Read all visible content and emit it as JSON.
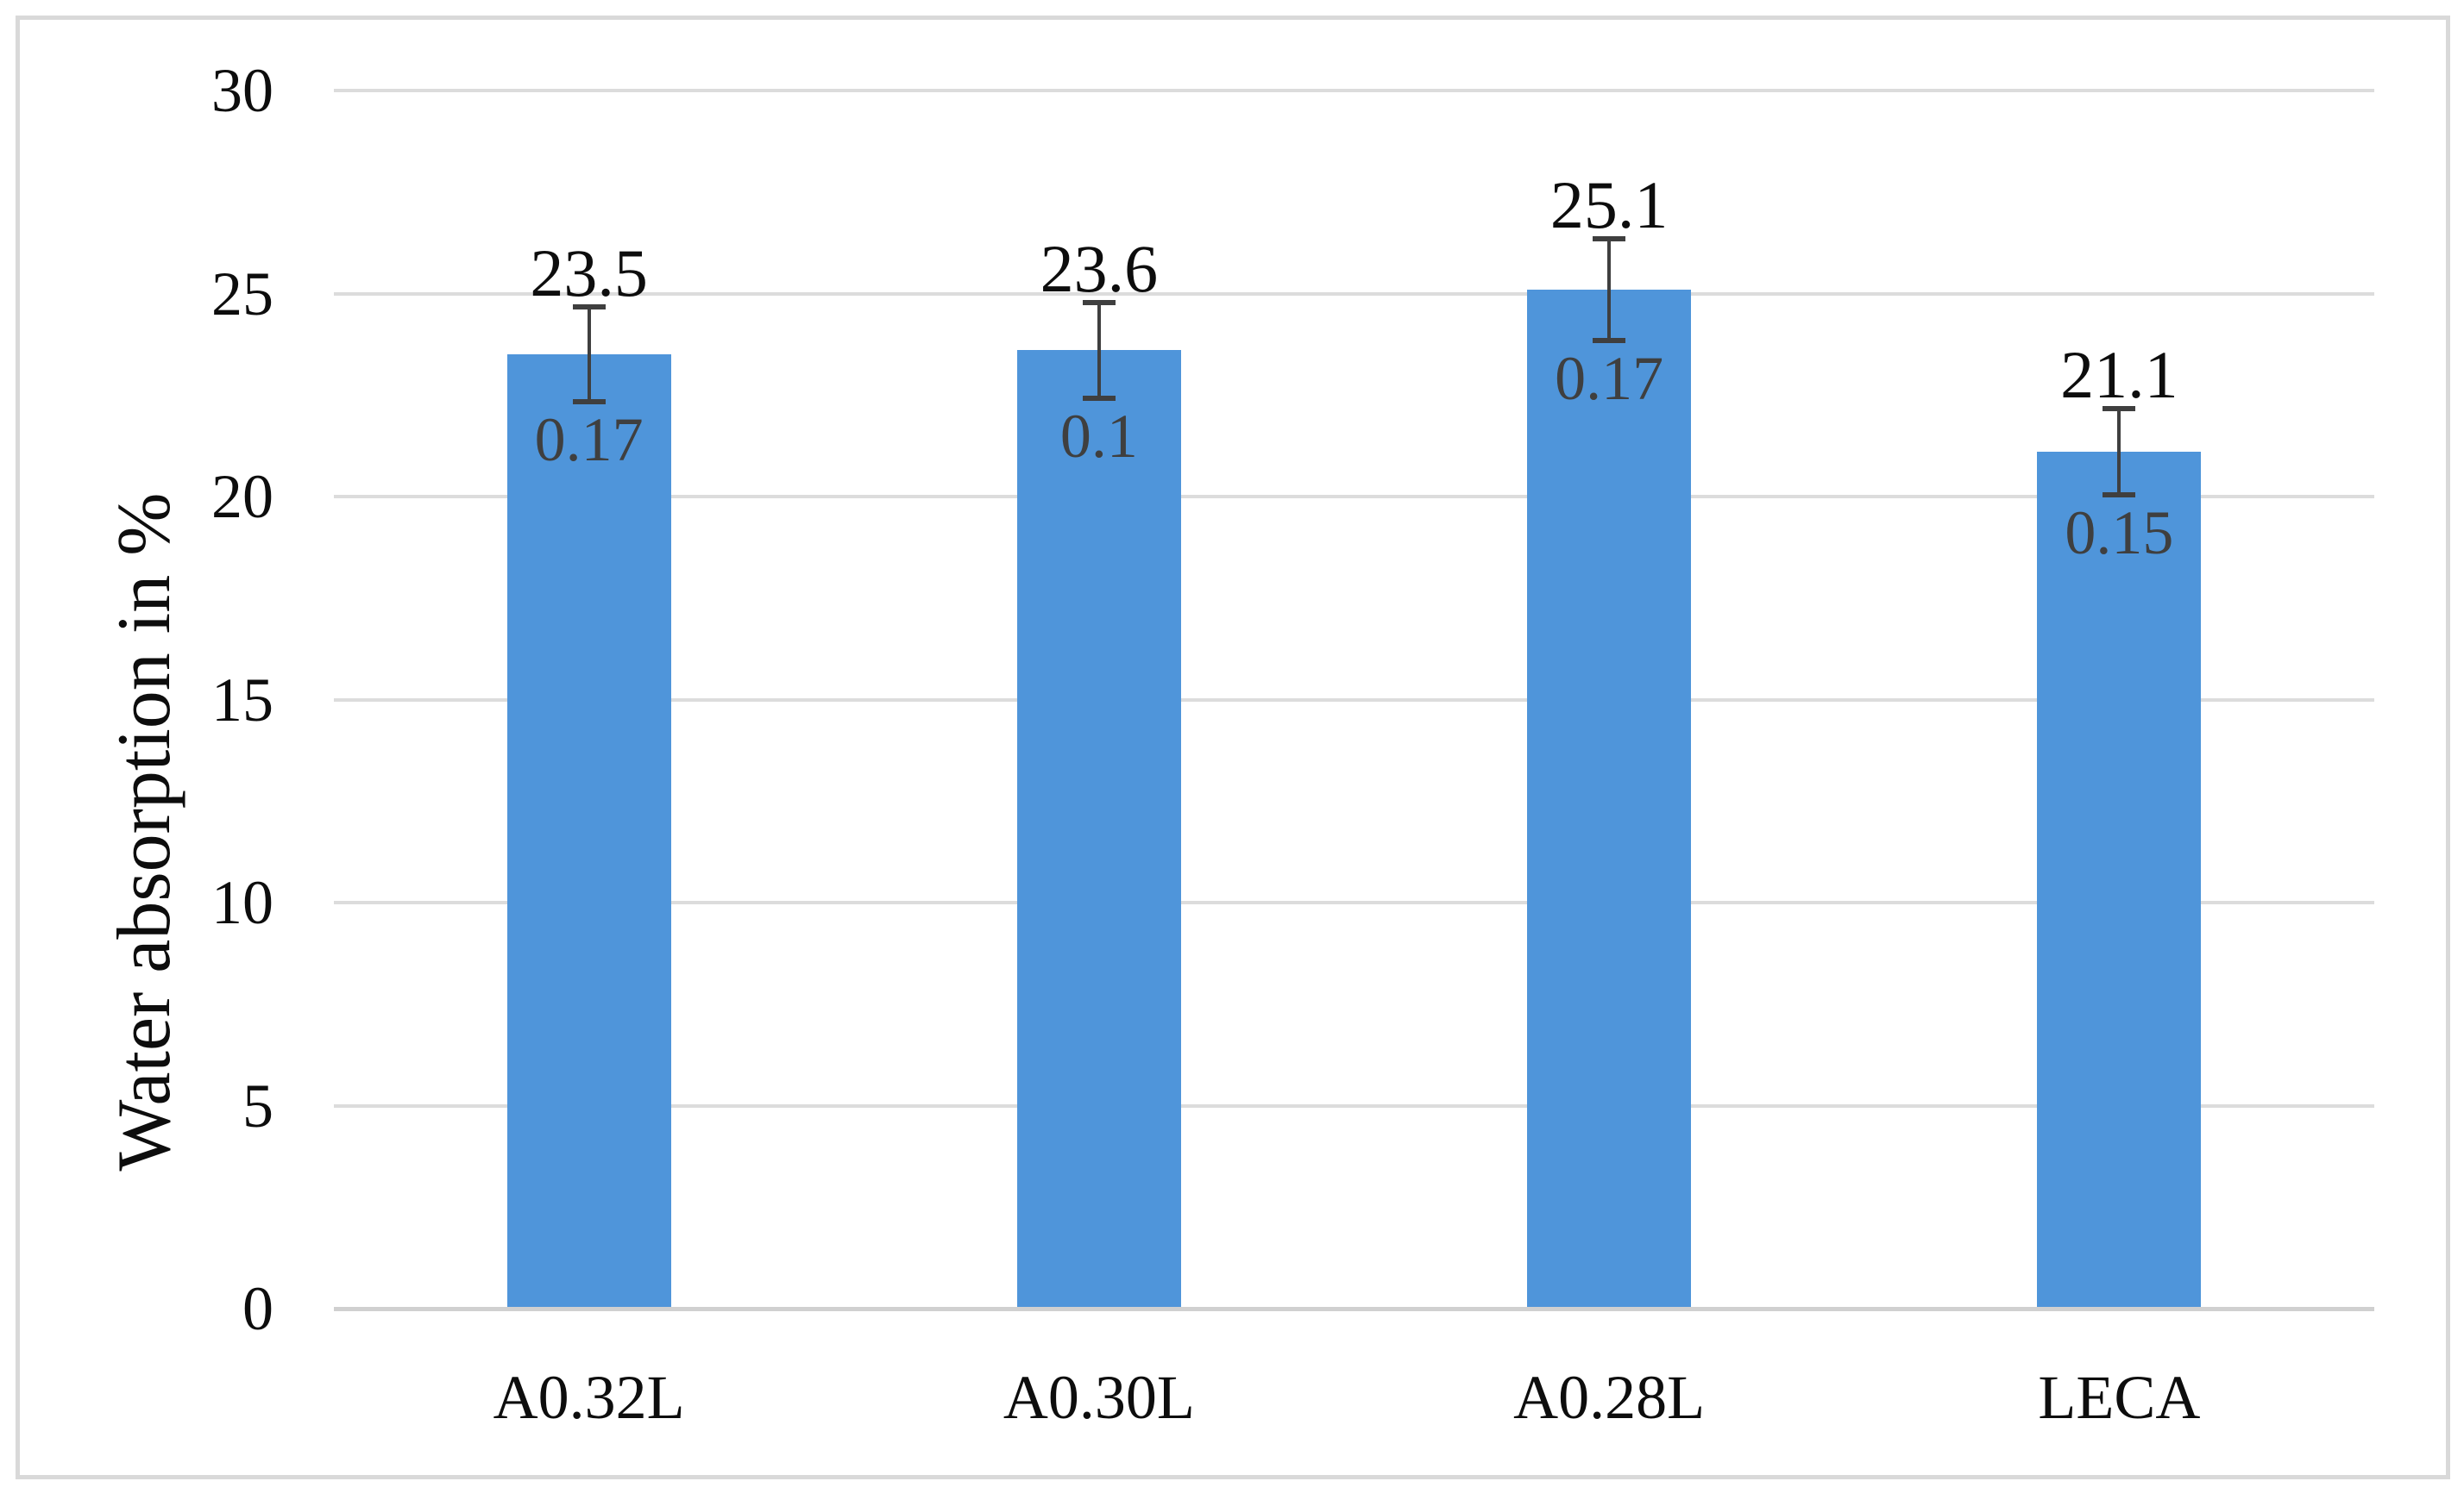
{
  "figure": {
    "background_color": "#ffffff",
    "border_color": "#d9d9d9"
  },
  "chart_data": {
    "type": "bar",
    "title": "",
    "categories": [
      "A0.32L",
      "A0.30L",
      "A0.28L",
      "LECA"
    ],
    "values": [
      23.5,
      23.6,
      25.1,
      21.1
    ],
    "bar_labels": [
      "23.5",
      "23.6",
      "25.1",
      "21.1"
    ],
    "error_labels": [
      "0.17",
      "0.1",
      "0.17",
      "0.15"
    ],
    "error_bar_percent": 5,
    "xlabel": "",
    "ylabel": "Water absorption in %",
    "ylim": [
      0,
      30
    ],
    "ytick_interval": 5,
    "yticks": [
      "0",
      "5",
      "10",
      "15",
      "20",
      "25",
      "30"
    ],
    "grid": "horizontal",
    "legend": "none",
    "bar_color": "#4F95DA",
    "error_bar_color": "#3F3F3F",
    "error_label_color": "#3F3F3F",
    "data_label_color": "#0D0D0D",
    "tick_label_color": "#0D0D0D",
    "gridline_color": "#DCDCDC",
    "axis_line_color": "#D0D0D0"
  }
}
